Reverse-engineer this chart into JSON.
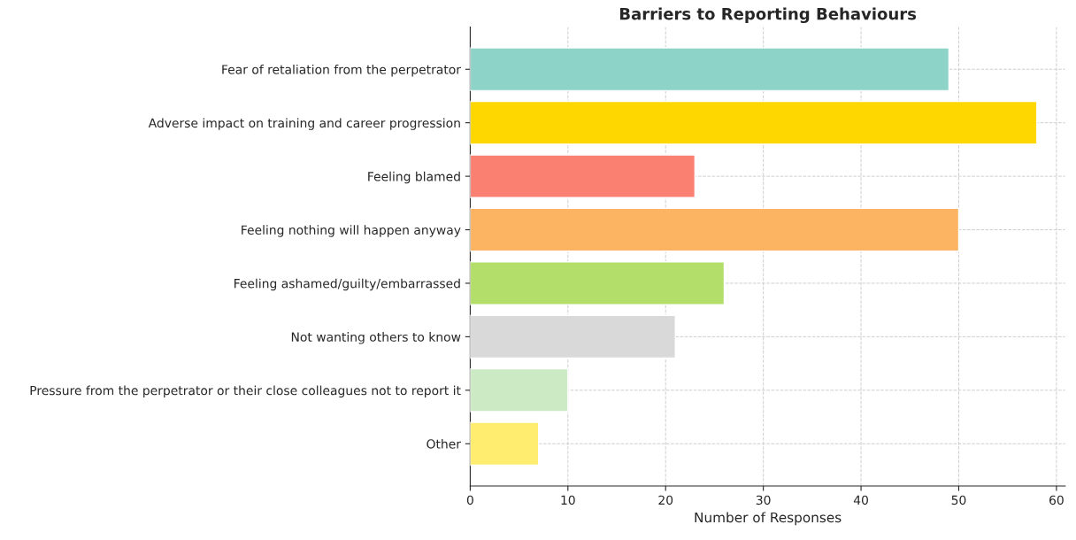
{
  "chart_data": {
    "type": "bar",
    "orientation": "horizontal",
    "title": "Barriers to Reporting Behaviours",
    "xlabel": "Number of Responses",
    "categories": [
      "Fear of retaliation from the perpetrator",
      "Adverse impact on training and career progression",
      "Feeling blamed",
      "Feeling nothing will happen anyway",
      "Feeling ashamed/guilty/embarrassed",
      "Not wanting others to know",
      "Pressure from the perpetrator or their close colleagues not to report it",
      "Other"
    ],
    "values": [
      49,
      58,
      23,
      50,
      26,
      21,
      10,
      7
    ],
    "colors": [
      "#8dd3c7",
      "#ffd700",
      "#fa8072",
      "#fdb462",
      "#b3de69",
      "#d9d9d9",
      "#ccebc5",
      "#ffed6f"
    ],
    "xlim": [
      0,
      60.9
    ],
    "xticks": [
      0,
      10,
      20,
      30,
      40,
      50,
      60
    ],
    "grid": true
  }
}
